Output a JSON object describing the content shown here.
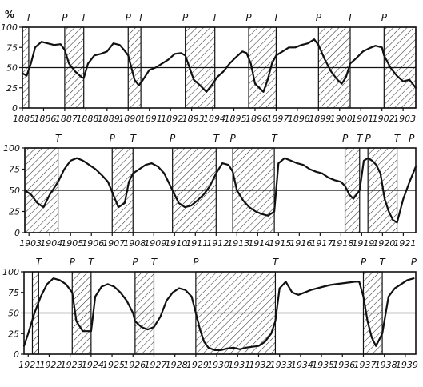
{
  "chart_data": [
    {
      "type": "line",
      "unit_label": "%",
      "yticks": [
        0,
        25,
        50,
        75,
        100
      ],
      "ylim": [
        0,
        100
      ],
      "xlim": [
        1885,
        1903.6
      ],
      "reference_line": 50,
      "xticks": [
        1885,
        1886,
        1887,
        1888,
        1889,
        1890,
        1891,
        1892,
        1893,
        1894,
        1895,
        1896,
        1897,
        1898,
        1899,
        1900,
        1901,
        1902,
        1903
      ],
      "xtick_labels": [
        "1885",
        "1886",
        "1887",
        "1888",
        "1889",
        "1890",
        "1891",
        "1892",
        "1893",
        "1894",
        "1895",
        "1896",
        "1897",
        "1898",
        "1899",
        "1900",
        "1901",
        "1902",
        "1903"
      ],
      "markers": [
        {
          "label": "T",
          "x": 1885.3
        },
        {
          "label": "P",
          "x": 1887.0
        },
        {
          "label": "T",
          "x": 1887.9
        },
        {
          "label": "P",
          "x": 1890.0
        },
        {
          "label": "T",
          "x": 1890.6
        },
        {
          "label": "P",
          "x": 1892.7
        },
        {
          "label": "T",
          "x": 1894.1
        },
        {
          "label": "P",
          "x": 1895.7
        },
        {
          "label": "T",
          "x": 1897.0
        },
        {
          "label": "P",
          "x": 1899.0
        },
        {
          "label": "T",
          "x": 1900.5
        },
        {
          "label": "P",
          "x": 1902.1
        }
      ],
      "shaded": [
        [
          1885.0,
          1885.3
        ],
        [
          1887.0,
          1887.9
        ],
        [
          1890.0,
          1890.6
        ],
        [
          1892.7,
          1894.1
        ],
        [
          1895.7,
          1897.0
        ],
        [
          1899.0,
          1900.5
        ],
        [
          1902.1,
          1903.6
        ]
      ],
      "x": [
        1885.0,
        1885.2,
        1885.4,
        1885.6,
        1885.9,
        1886.2,
        1886.5,
        1886.8,
        1887.0,
        1887.2,
        1887.5,
        1887.8,
        1887.9,
        1888.1,
        1888.4,
        1888.7,
        1889.0,
        1889.3,
        1889.6,
        1889.8,
        1890.0,
        1890.3,
        1890.5,
        1890.7,
        1891.0,
        1891.3,
        1891.6,
        1891.9,
        1892.2,
        1892.5,
        1892.7,
        1892.9,
        1893.1,
        1893.4,
        1893.7,
        1894.0,
        1894.2,
        1894.5,
        1894.8,
        1895.1,
        1895.4,
        1895.6,
        1895.8,
        1896.0,
        1896.2,
        1896.4,
        1896.6,
        1896.8,
        1897.0,
        1897.3,
        1897.6,
        1897.9,
        1898.2,
        1898.5,
        1898.8,
        1899.0,
        1899.3,
        1899.6,
        1899.9,
        1900.1,
        1900.3,
        1900.5,
        1900.8,
        1901.1,
        1901.4,
        1901.7,
        1902.0,
        1902.1,
        1902.4,
        1902.7,
        1903.0,
        1903.3,
        1903.6
      ],
      "y": [
        43,
        40,
        55,
        75,
        82,
        80,
        78,
        79,
        72,
        55,
        45,
        38,
        37,
        55,
        65,
        67,
        70,
        80,
        78,
        72,
        65,
        35,
        28,
        35,
        47,
        50,
        55,
        60,
        67,
        68,
        65,
        50,
        35,
        28,
        20,
        30,
        38,
        45,
        55,
        63,
        70,
        68,
        55,
        30,
        25,
        20,
        35,
        55,
        65,
        70,
        75,
        75,
        78,
        80,
        85,
        78,
        60,
        45,
        35,
        30,
        38,
        55,
        62,
        70,
        74,
        77,
        75,
        65,
        50,
        40,
        33,
        35,
        25
      ]
    },
    {
      "type": "line",
      "unit_label": "",
      "yticks": [
        0,
        25,
        50,
        75,
        100
      ],
      "ylim": [
        0,
        100
      ],
      "xlim": [
        1902.8,
        1921.6
      ],
      "reference_line": 50,
      "xticks": [
        1903,
        1904,
        1905,
        1906,
        1907,
        1908,
        1909,
        1910,
        1911,
        1912,
        1913,
        1914,
        1915,
        1916,
        1917,
        1918,
        1919,
        1920,
        1921
      ],
      "xtick_labels": [
        "1903",
        "1904",
        "1905",
        "1906",
        "1907",
        "1908",
        "1909",
        "1910",
        "1911",
        "1912",
        "1913",
        "1914",
        "1915",
        "1916",
        "1917",
        "1918",
        "1919",
        "1920",
        "1921"
      ],
      "markers": [
        {
          "label": "T",
          "x": 1904.4
        },
        {
          "label": "P",
          "x": 1907.0
        },
        {
          "label": "T",
          "x": 1908.0
        },
        {
          "label": "P",
          "x": 1909.9
        },
        {
          "label": "T",
          "x": 1912.0
        },
        {
          "label": "P",
          "x": 1912.8
        },
        {
          "label": "T",
          "x": 1914.8
        },
        {
          "label": "P",
          "x": 1918.2
        },
        {
          "label": "T",
          "x": 1918.9
        },
        {
          "label": "P",
          "x": 1919.3
        },
        {
          "label": "T",
          "x": 1920.7
        },
        {
          "label": "P",
          "x": 1921.4
        }
      ],
      "shaded": [
        [
          1902.8,
          1904.4
        ],
        [
          1907.0,
          1908.0
        ],
        [
          1909.9,
          1912.0
        ],
        [
          1912.8,
          1914.8
        ],
        [
          1918.2,
          1918.9
        ],
        [
          1919.3,
          1920.7
        ]
      ],
      "x": [
        1902.8,
        1903.1,
        1903.4,
        1903.7,
        1904.0,
        1904.4,
        1904.7,
        1905.0,
        1905.3,
        1905.6,
        1905.9,
        1906.2,
        1906.5,
        1906.8,
        1907.0,
        1907.3,
        1907.6,
        1907.8,
        1908.0,
        1908.3,
        1908.6,
        1908.9,
        1909.2,
        1909.5,
        1909.7,
        1909.9,
        1910.2,
        1910.5,
        1910.8,
        1911.1,
        1911.4,
        1911.7,
        1912.0,
        1912.3,
        1912.6,
        1912.8,
        1913.0,
        1913.3,
        1913.6,
        1913.9,
        1914.2,
        1914.5,
        1914.8,
        1915.0,
        1915.3,
        1915.6,
        1915.9,
        1916.2,
        1916.5,
        1916.8,
        1917.1,
        1917.4,
        1917.7,
        1918.0,
        1918.2,
        1918.4,
        1918.6,
        1918.9,
        1919.1,
        1919.3,
        1919.5,
        1919.7,
        1919.9,
        1920.1,
        1920.3,
        1920.5,
        1920.7,
        1921.0,
        1921.3,
        1921.6
      ],
      "y": [
        50,
        45,
        35,
        30,
        45,
        60,
        75,
        85,
        88,
        85,
        80,
        75,
        68,
        60,
        48,
        30,
        35,
        60,
        70,
        75,
        80,
        82,
        78,
        70,
        60,
        50,
        35,
        30,
        32,
        38,
        45,
        55,
        70,
        82,
        80,
        72,
        50,
        38,
        30,
        25,
        22,
        20,
        25,
        82,
        88,
        85,
        82,
        80,
        75,
        72,
        70,
        65,
        62,
        60,
        55,
        45,
        40,
        50,
        85,
        88,
        85,
        80,
        70,
        40,
        25,
        15,
        12,
        40,
        60,
        78
      ]
    },
    {
      "type": "line",
      "unit_label": "",
      "yticks": [
        0,
        25,
        50,
        75,
        100
      ],
      "ylim": [
        0,
        100
      ],
      "xlim": [
        1920.8,
        1939.5
      ],
      "reference_line": 50,
      "xticks": [
        1921,
        1922,
        1923,
        1924,
        1925,
        1926,
        1927,
        1928,
        1929,
        1930,
        1931,
        1932,
        1933,
        1934,
        1935,
        1936,
        1937,
        1938,
        1939
      ],
      "xtick_labels": [
        "1921",
        "1922",
        "1923",
        "1924",
        "1925",
        "1926",
        "1927",
        "1928",
        "1929",
        "1930",
        "1931",
        "1932",
        "1933",
        "1934",
        "1935",
        "1936",
        "1937",
        "1938",
        "1939"
      ],
      "markers": [
        {
          "label": "T",
          "x": 1921.5
        },
        {
          "label": "P",
          "x": 1923.1
        },
        {
          "label": "T",
          "x": 1924.0
        },
        {
          "label": "P",
          "x": 1926.1
        },
        {
          "label": "T",
          "x": 1927.0
        },
        {
          "label": "P",
          "x": 1929.0
        },
        {
          "label": "T",
          "x": 1932.8
        },
        {
          "label": "P",
          "x": 1937.0
        },
        {
          "label": "T",
          "x": 1937.9
        },
        {
          "label": "P",
          "x": 1939.4
        }
      ],
      "shaded": [
        [
          1921.2,
          1921.5
        ],
        [
          1923.1,
          1924.0
        ],
        [
          1926.1,
          1927.0
        ],
        [
          1929.0,
          1932.8
        ],
        [
          1937.0,
          1937.9
        ]
      ],
      "x": [
        1920.8,
        1921.0,
        1921.3,
        1921.6,
        1921.9,
        1922.2,
        1922.5,
        1922.8,
        1923.1,
        1923.3,
        1923.6,
        1924.0,
        1924.2,
        1924.5,
        1924.8,
        1925.1,
        1925.4,
        1925.7,
        1926.0,
        1926.1,
        1926.4,
        1926.7,
        1927.0,
        1927.3,
        1927.6,
        1927.9,
        1928.2,
        1928.5,
        1928.8,
        1929.0,
        1929.2,
        1929.4,
        1929.6,
        1929.9,
        1930.2,
        1930.5,
        1930.8,
        1931.1,
        1931.4,
        1931.7,
        1932.0,
        1932.3,
        1932.6,
        1932.8,
        1933.0,
        1933.3,
        1933.6,
        1933.9,
        1934.2,
        1934.5,
        1934.8,
        1935.1,
        1935.4,
        1935.7,
        1936.0,
        1936.3,
        1936.6,
        1936.8,
        1937.0,
        1937.2,
        1937.4,
        1937.6,
        1937.9,
        1938.2,
        1938.5,
        1938.8,
        1939.1,
        1939.4
      ],
      "y": [
        10,
        25,
        50,
        70,
        85,
        92,
        90,
        85,
        75,
        40,
        28,
        28,
        70,
        82,
        85,
        82,
        75,
        65,
        50,
        40,
        33,
        30,
        33,
        45,
        65,
        75,
        80,
        78,
        70,
        50,
        30,
        15,
        8,
        5,
        5,
        7,
        8,
        6,
        8,
        9,
        10,
        15,
        25,
        40,
        80,
        88,
        75,
        72,
        75,
        78,
        80,
        82,
        84,
        85,
        86,
        87,
        88,
        88,
        70,
        40,
        20,
        10,
        25,
        70,
        80,
        85,
        90,
        92
      ]
    }
  ]
}
